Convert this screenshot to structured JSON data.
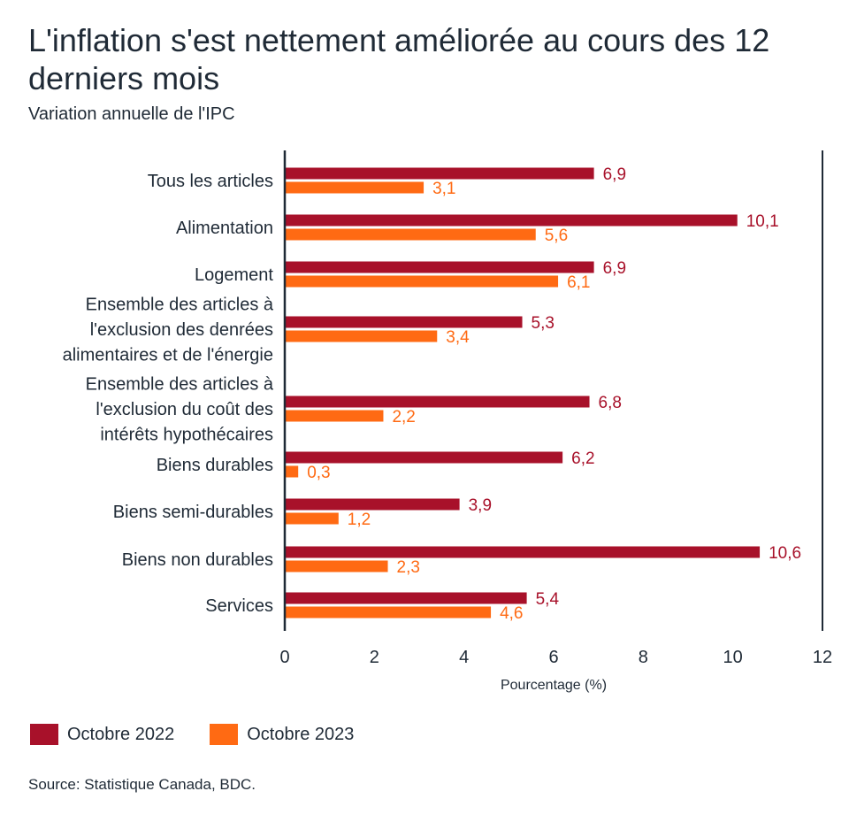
{
  "title": "L'inflation s'est nettement améliorée au cours des 12 derniers mois",
  "subtitle": "Variation annuelle de l'IPC",
  "source": "Source: Statistique Canada, BDC.",
  "chart_data": {
    "type": "bar",
    "orientation": "horizontal",
    "categories": [
      "Tous les articles",
      "Alimentation",
      "Logement",
      "Ensemble des articles à l'exclusion des denrées alimentaires et de l'énergie",
      "Ensemble des articles à l'exclusion du coût des intérêts hypothécaires",
      "Biens durables",
      "Biens semi-durables",
      "Biens non durables",
      "Services"
    ],
    "category_lines": [
      [
        "Tous les articles"
      ],
      [
        "Alimentation"
      ],
      [
        "Logement"
      ],
      [
        "Ensemble des articles à",
        "l'exclusion des denrées",
        "alimentaires et de l'énergie"
      ],
      [
        "Ensemble des articles à",
        "l'exclusion du coût des",
        "intérêts hypothécaires"
      ],
      [
        "Biens durables"
      ],
      [
        "Biens semi-durables"
      ],
      [
        "Biens non durables"
      ],
      [
        "Services"
      ]
    ],
    "series": [
      {
        "name": "Octobre 2022",
        "color": "#a8112a",
        "values": [
          6.9,
          10.1,
          6.9,
          5.3,
          6.8,
          6.2,
          3.9,
          10.6,
          5.4
        ],
        "labels": [
          "6,9",
          "10,1",
          "6,9",
          "5,3",
          "6,8",
          "6,2",
          "3,9",
          "10,6",
          "5,4"
        ]
      },
      {
        "name": "Octobre 2023",
        "color": "#ff6a13",
        "values": [
          3.1,
          5.6,
          6.1,
          3.4,
          2.2,
          0.3,
          1.2,
          2.3,
          4.6
        ],
        "labels": [
          "3,1",
          "5,6",
          "6,1",
          "3,4",
          "2,2",
          "0,3",
          "1,2",
          "2,3",
          "4,6"
        ]
      }
    ],
    "xlabel": "Pourcentage (%)",
    "xlim": [
      0,
      12
    ],
    "xticks": [
      0,
      2,
      4,
      6,
      8,
      10,
      12
    ],
    "grid": false,
    "legend_position": "bottom-left"
  }
}
